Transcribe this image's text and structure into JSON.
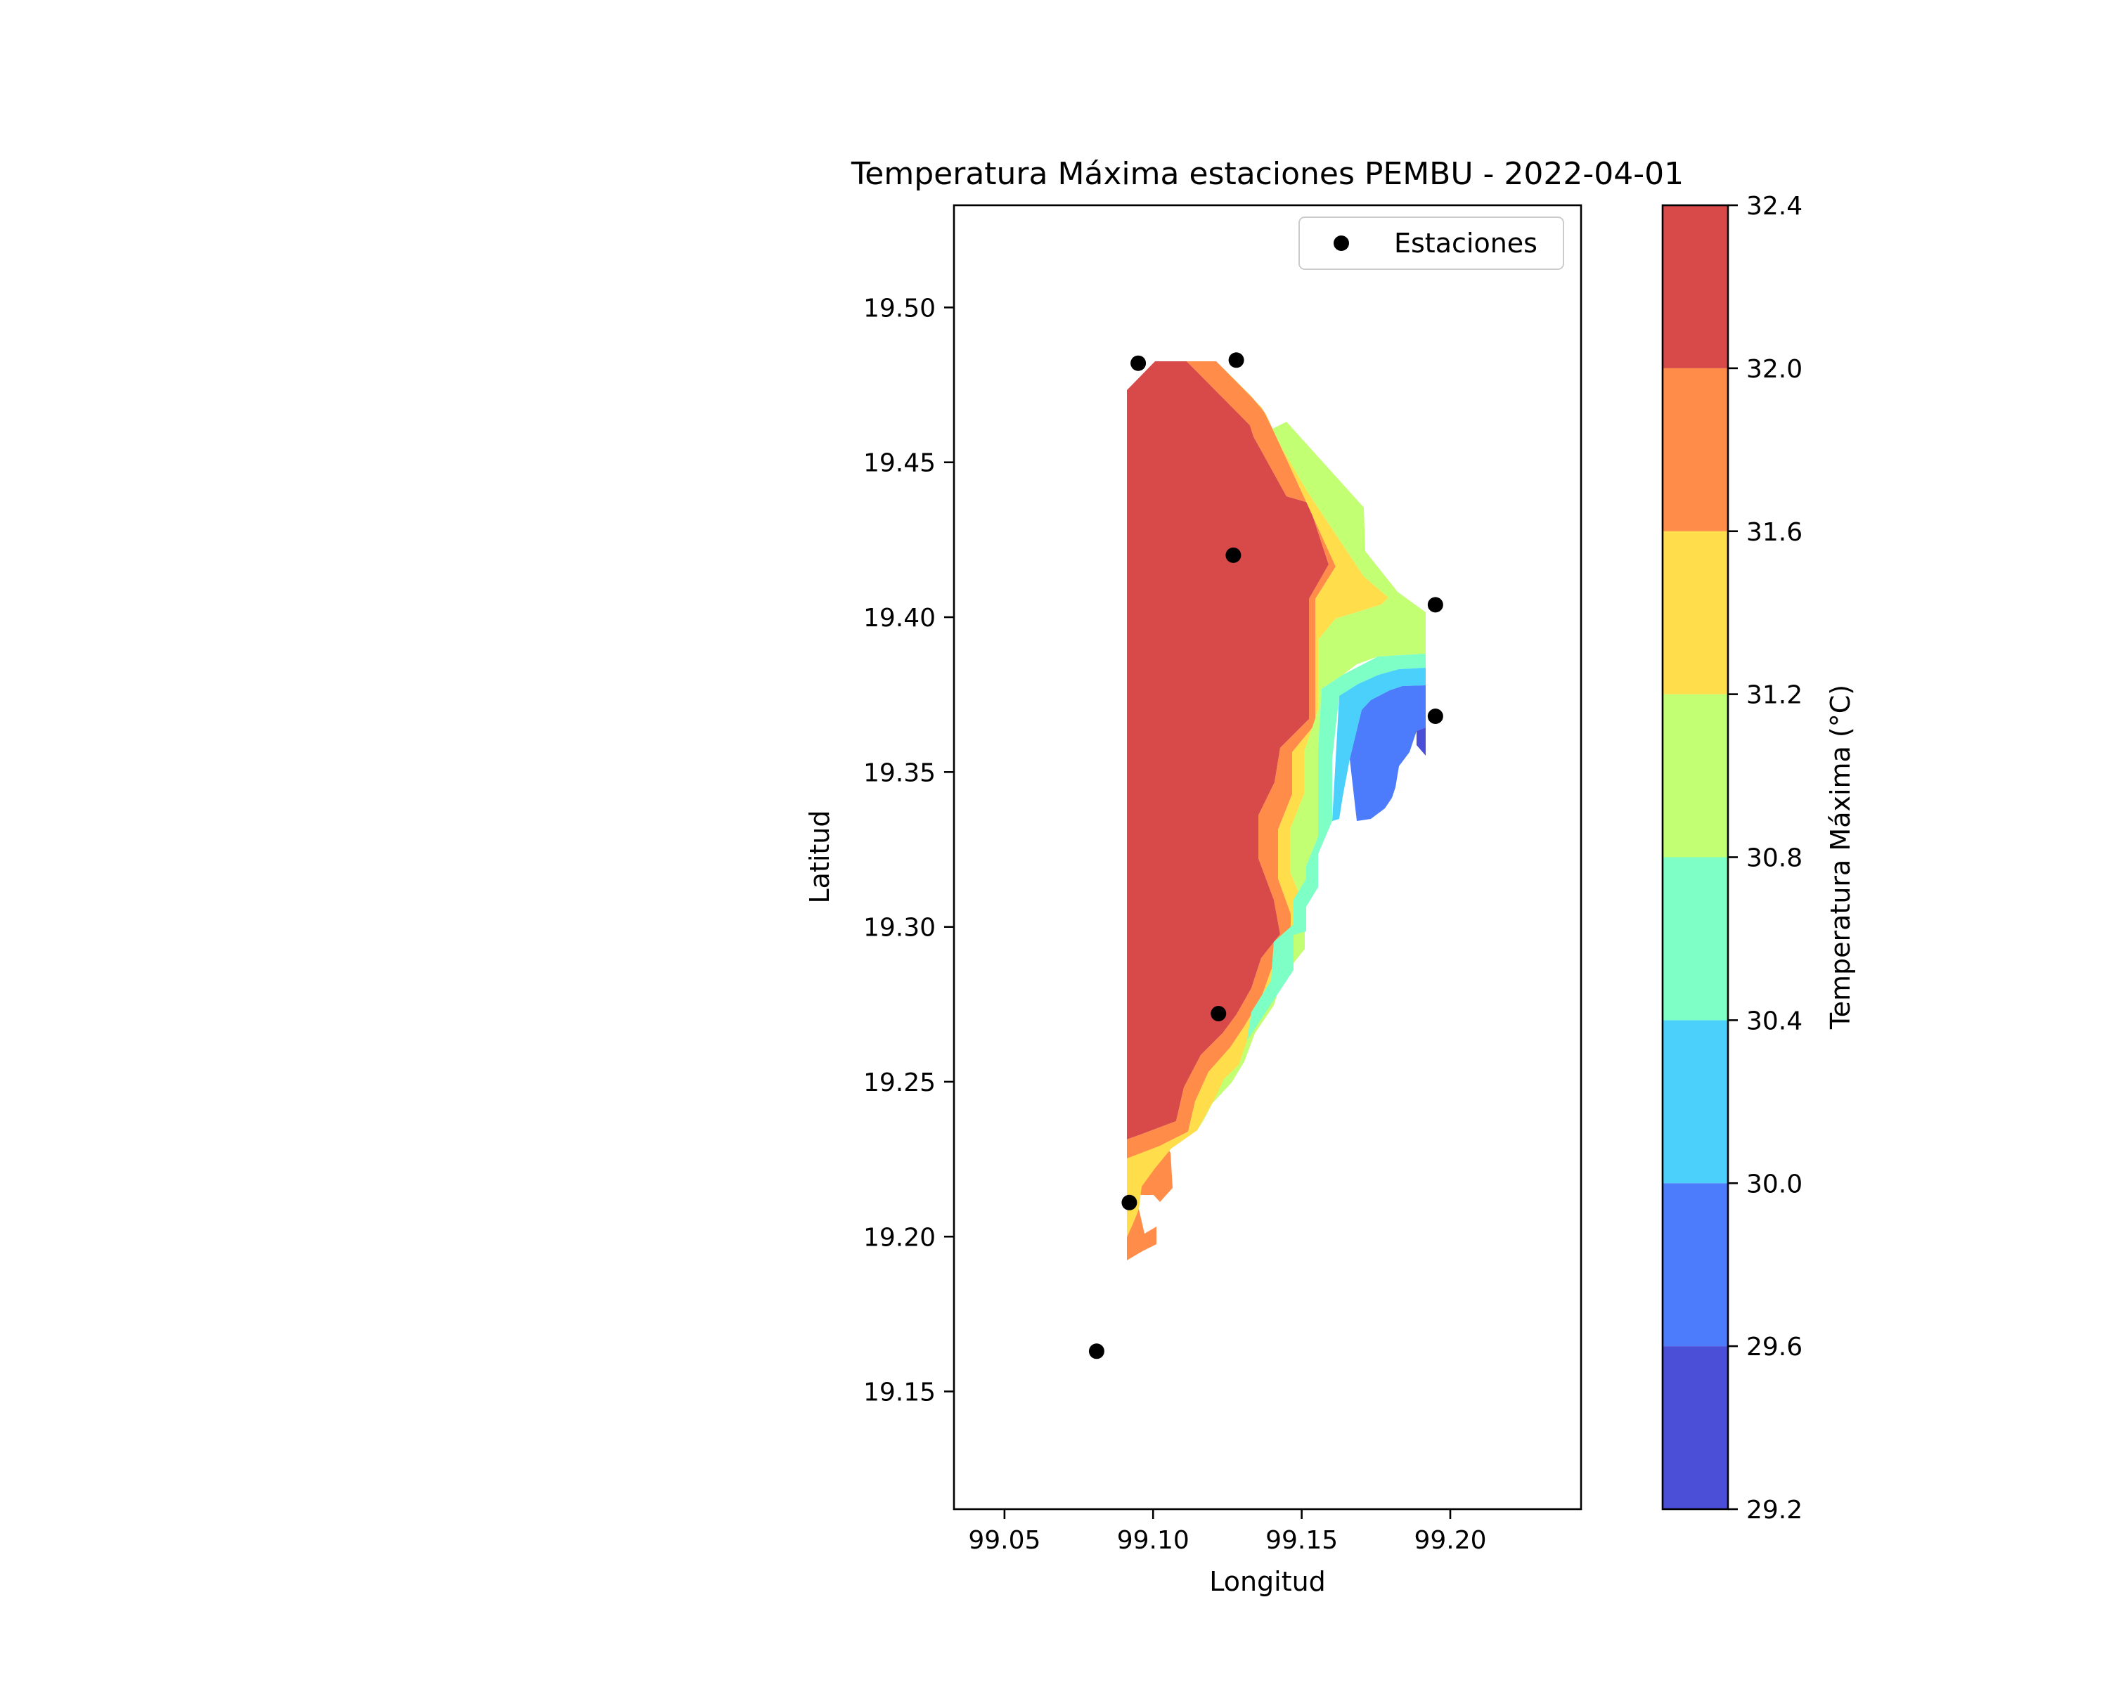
{
  "chart_data": {
    "type": "contour",
    "title": "Temperatura Máxima estaciones PEMBU - 2022-04-01",
    "xlabel": "Longitud",
    "ylabel": "Latitud",
    "xlim": [
      99.033,
      99.244
    ],
    "ylim": [
      19.112,
      19.533
    ],
    "x_ticks": [
      99.05,
      99.1,
      99.15,
      99.2
    ],
    "y_ticks": [
      19.15,
      19.2,
      19.25,
      19.3,
      19.35,
      19.4,
      19.45,
      19.5
    ],
    "x_tick_labels": [
      "99.05",
      "99.10",
      "99.15",
      "99.20"
    ],
    "y_tick_labels": [
      "19.15",
      "19.20",
      "19.25",
      "19.30",
      "19.35",
      "19.40",
      "19.45",
      "19.50"
    ],
    "legend": {
      "position": "upper-right",
      "entries": [
        {
          "label": "Estaciones",
          "marker": "circle",
          "color": "#000000"
        }
      ]
    },
    "colorbar": {
      "label": "Temperatura Máxima (°C)",
      "levels": [
        29.2,
        29.6,
        30.0,
        30.4,
        30.8,
        31.2,
        31.6,
        32.0,
        32.4
      ],
      "level_labels": [
        "29.2",
        "29.6",
        "30.0",
        "30.4",
        "30.8",
        "31.2",
        "31.6",
        "32.0",
        "32.4"
      ],
      "colors": [
        "#4b4ed6",
        "#4c7bfb",
        "#4bd0fb",
        "#7effc5",
        "#c2ff72",
        "#ffdd4b",
        "#ff8c48",
        "#d84a4a"
      ]
    },
    "stations": [
      {
        "lon": 99.095,
        "lat": 19.482
      },
      {
        "lon": 99.128,
        "lat": 19.483
      },
      {
        "lon": 99.127,
        "lat": 19.42
      },
      {
        "lon": 99.195,
        "lat": 19.404
      },
      {
        "lon": 99.195,
        "lat": 19.368
      },
      {
        "lon": 99.122,
        "lat": 19.272
      },
      {
        "lon": 99.092,
        "lat": 19.211
      },
      {
        "lon": 99.081,
        "lat": 19.163
      }
    ],
    "contour_regions": [
      {
        "level": 31.6,
        "points": [
          [
            99.091,
            19.192
          ],
          [
            99.101,
            19.203
          ],
          [
            99.101,
            19.215
          ],
          [
            99.111,
            19.227
          ],
          [
            99.111,
            19.237
          ],
          [
            99.121,
            19.242
          ],
          [
            99.126,
            19.253
          ],
          [
            99.126,
            19.262
          ],
          [
            99.136,
            19.287
          ],
          [
            99.141,
            19.3
          ],
          [
            99.15,
            19.31
          ],
          [
            99.16,
            19.313
          ],
          [
            99.16,
            19.39
          ],
          [
            99.176,
            19.415
          ],
          [
            99.166,
            19.435
          ],
          [
            99.119,
            19.483
          ],
          [
            99.111,
            19.483
          ],
          [
            99.101,
            19.474
          ],
          [
            99.101,
            19.393
          ],
          [
            99.091,
            19.383
          ]
        ]
      },
      {
        "level": 31.2,
        "points": [
          [
            99.091,
            19.192
          ],
          [
            99.101,
            19.203
          ],
          [
            99.101,
            19.215
          ],
          [
            99.111,
            19.227
          ],
          [
            99.111,
            19.237
          ],
          [
            99.121,
            19.242
          ],
          [
            99.126,
            19.253
          ],
          [
            99.126,
            19.262
          ],
          [
            99.136,
            19.287
          ],
          [
            99.141,
            19.3
          ],
          [
            99.15,
            19.31
          ],
          [
            99.16,
            19.313
          ],
          [
            99.16,
            19.38
          ],
          [
            99.174,
            19.39
          ],
          [
            99.19,
            19.391
          ],
          [
            99.19,
            19.4
          ],
          [
            99.176,
            19.415
          ],
          [
            99.166,
            19.435
          ],
          [
            99.119,
            19.483
          ],
          [
            99.111,
            19.483
          ],
          [
            99.101,
            19.474
          ],
          [
            99.101,
            19.393
          ],
          [
            99.091,
            19.383
          ]
        ]
      },
      {
        "level": 30.8,
        "points": [
          [
            99.126,
            19.253
          ],
          [
            99.126,
            19.262
          ],
          [
            99.136,
            19.287
          ],
          [
            99.141,
            19.3
          ],
          [
            99.15,
            19.31
          ],
          [
            99.16,
            19.313
          ],
          [
            99.16,
            19.38
          ],
          [
            99.174,
            19.39
          ],
          [
            99.19,
            19.391
          ],
          [
            99.19,
            19.4
          ],
          [
            99.176,
            19.415
          ],
          [
            99.166,
            19.435
          ],
          [
            99.119,
            19.483
          ],
          [
            99.111,
            19.483
          ],
          [
            99.101,
            19.474
          ],
          [
            99.101,
            19.393
          ],
          [
            99.091,
            19.383
          ]
        ]
      },
      {
        "level": 30.4,
        "points": [
          [
            99.091,
            19.192
          ],
          [
            99.101,
            19.203
          ],
          [
            99.101,
            19.215
          ],
          [
            99.091,
            19.215
          ]
        ]
      }
    ]
  }
}
